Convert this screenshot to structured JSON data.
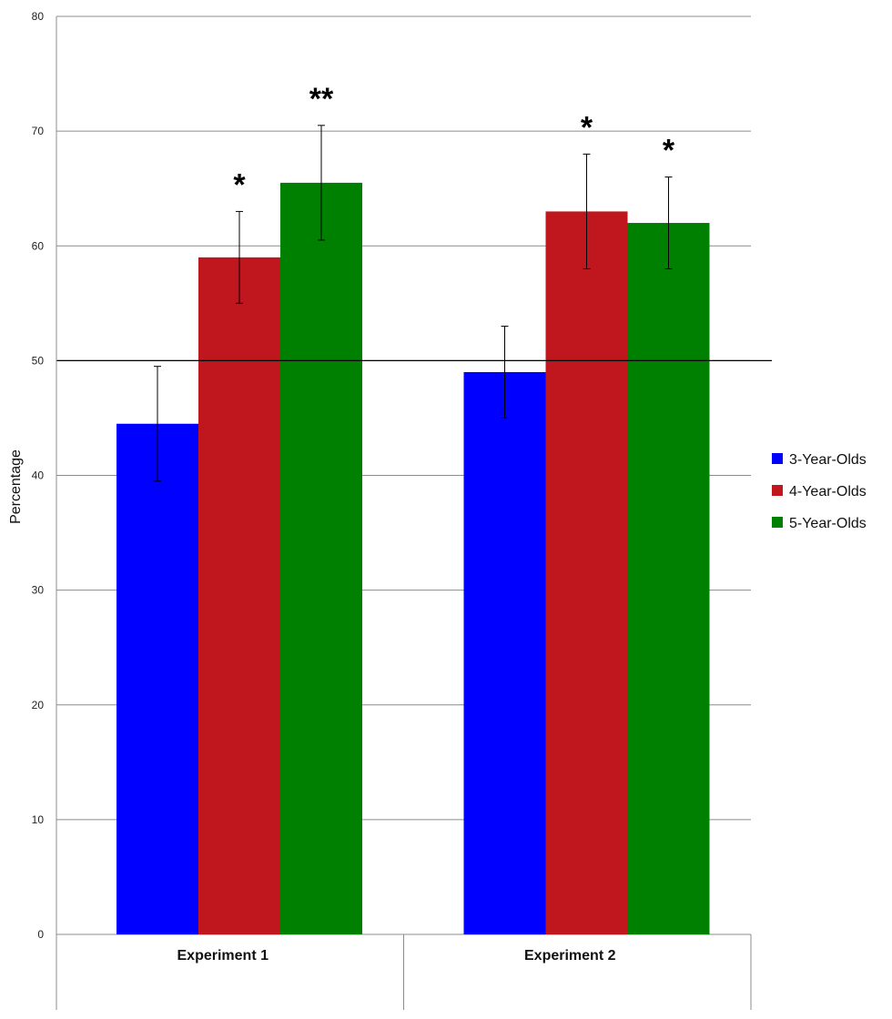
{
  "chart_data": {
    "type": "bar",
    "ylabel": "Percentage",
    "xlabel": "",
    "ylim": [
      0,
      80
    ],
    "yticks": [
      0,
      10,
      20,
      30,
      40,
      50,
      60,
      70,
      80
    ],
    "ytick_labels": [
      "0",
      "10",
      "20",
      "30",
      "40",
      "50",
      "60",
      "70",
      "80"
    ],
    "grid": true,
    "reference_line": 50,
    "legend_position": "right",
    "categories": [
      "Experiment 1",
      "Experiment 2"
    ],
    "series": [
      {
        "name": "3-Year-Olds",
        "color": "#0000ff",
        "values": [
          44.5,
          49
        ],
        "error_low": [
          39.5,
          45
        ],
        "error_high": [
          49.5,
          53
        ],
        "significance": [
          "",
          ""
        ]
      },
      {
        "name": "4-Year-Olds",
        "color": "#c0161e",
        "values": [
          59,
          63
        ],
        "error_low": [
          55,
          58
        ],
        "error_high": [
          63,
          68
        ],
        "significance": [
          "*",
          "*"
        ]
      },
      {
        "name": "5-Year-Olds",
        "color": "#008000",
        "values": [
          65.5,
          62
        ],
        "error_low": [
          60.5,
          58
        ],
        "error_high": [
          70.5,
          66
        ],
        "significance": [
          "**",
          "*"
        ]
      }
    ]
  }
}
